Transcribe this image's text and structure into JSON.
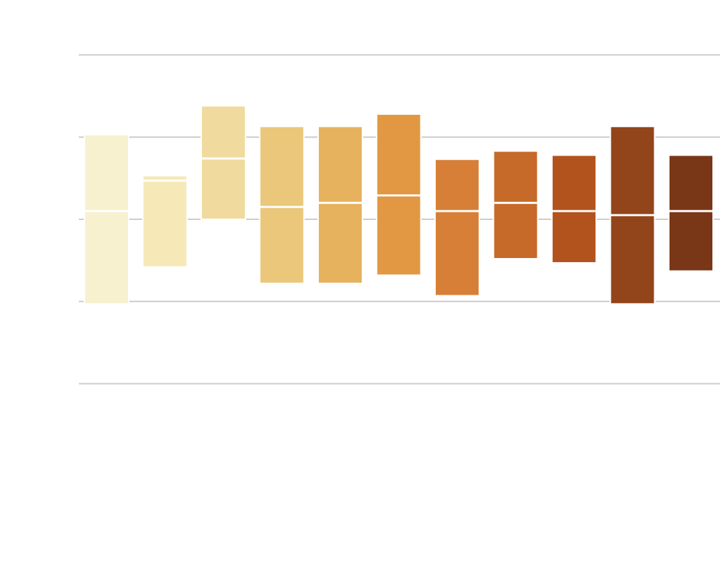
{
  "chart_data": {
    "type": "box",
    "title": "",
    "xlabel": "",
    "ylabel": "",
    "ylim": [
      -2.5,
      2.5
    ],
    "yticks": [
      -2,
      -1,
      0,
      1,
      2
    ],
    "grid": true,
    "grid_style": "horizontal",
    "legend": "none",
    "boxes": [
      {
        "q1": -1.03,
        "median": 0.1,
        "q3": 1.03,
        "color": "#f8f1cf"
      },
      {
        "q1": -0.58,
        "median": 0.47,
        "q3": 0.53,
        "color": "#f6e9b7"
      },
      {
        "q1": 0.0,
        "median": 0.74,
        "q3": 1.38,
        "color": "#f0da9d"
      },
      {
        "q1": -0.78,
        "median": 0.15,
        "q3": 1.13,
        "color": "#eac77a"
      },
      {
        "q1": -0.78,
        "median": 0.2,
        "q3": 1.13,
        "color": "#e6b25e"
      },
      {
        "q1": -0.68,
        "median": 0.29,
        "q3": 1.28,
        "color": "#e29843"
      },
      {
        "q1": -0.93,
        "median": 0.1,
        "q3": 0.73,
        "color": "#d77f37"
      },
      {
        "q1": -0.48,
        "median": 0.2,
        "q3": 0.83,
        "color": "#c66a29"
      },
      {
        "q1": -0.53,
        "median": 0.1,
        "q3": 0.78,
        "color": "#b2531d"
      },
      {
        "q1": -1.03,
        "median": 0.05,
        "q3": 1.13,
        "color": "#92451b"
      },
      {
        "q1": -0.63,
        "median": 0.1,
        "q3": 0.78,
        "color": "#7a3718"
      }
    ]
  }
}
